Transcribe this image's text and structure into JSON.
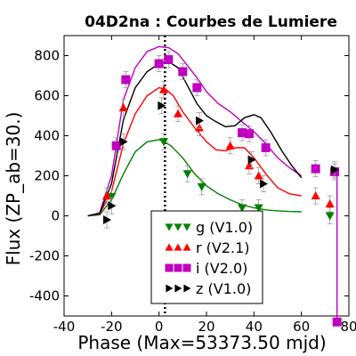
{
  "chart_data": {
    "type": "scatter",
    "title": "04D2na : Courbes de Lumiere",
    "xlabel": "Phase (Max=53373.50 mjd)",
    "ylabel": "Flux (ZP_ab=30.)",
    "xlim": [
      -40,
      80
    ],
    "ylim": [
      -500,
      900
    ],
    "xticks": [
      -40,
      -20,
      0,
      20,
      40,
      60,
      80
    ],
    "yticks": [
      -400,
      -200,
      0,
      200,
      400,
      600,
      800
    ],
    "tick_labels_x": [
      "-40",
      "-20",
      "0",
      "20",
      "40",
      "60",
      "80"
    ],
    "tick_labels_y": [
      "-400",
      "-200",
      "0",
      "200",
      "400",
      "600",
      "800"
    ],
    "max_line_x": 2.5,
    "legend_position": "bottom-center",
    "series": [
      {
        "name": "g (V1.0)",
        "color": "#008000",
        "marker": "triangle-down",
        "points": [
          [
            -20,
            95
          ],
          [
            2,
            370
          ],
          [
            12,
            210
          ],
          [
            18,
            145
          ],
          [
            35,
            40
          ],
          [
            42,
            40
          ],
          [
            72,
            0
          ]
        ],
        "model": [
          [
            -30,
            0
          ],
          [
            -25,
            5
          ],
          [
            -20,
            80
          ],
          [
            -15,
            210
          ],
          [
            -10,
            320
          ],
          [
            -5,
            370
          ],
          [
            0,
            380
          ],
          [
            2,
            372
          ],
          [
            5,
            350
          ],
          [
            10,
            290
          ],
          [
            15,
            210
          ],
          [
            20,
            150
          ],
          [
            25,
            110
          ],
          [
            30,
            80
          ],
          [
            35,
            55
          ],
          [
            40,
            40
          ],
          [
            45,
            30
          ],
          [
            50,
            25
          ],
          [
            55,
            22
          ],
          [
            60,
            20
          ]
        ]
      },
      {
        "name": "r (V2.1)",
        "color": "#ff0000",
        "marker": "triangle-up",
        "points": [
          [
            -22,
            100
          ],
          [
            -15,
            540
          ],
          [
            2,
            630
          ],
          [
            8,
            510
          ],
          [
            17,
            440
          ],
          [
            30,
            350
          ],
          [
            38,
            250
          ],
          [
            42,
            200
          ],
          [
            66,
            100
          ],
          [
            72,
            60
          ]
        ],
        "model": [
          [
            -30,
            0
          ],
          [
            -25,
            10
          ],
          [
            -20,
            120
          ],
          [
            -15,
            360
          ],
          [
            -10,
            510
          ],
          [
            -5,
            600
          ],
          [
            0,
            640
          ],
          [
            3,
            630
          ],
          [
            6,
            600
          ],
          [
            10,
            520
          ],
          [
            15,
            440
          ],
          [
            20,
            370
          ],
          [
            24,
            330
          ],
          [
            28,
            325
          ],
          [
            32,
            340
          ],
          [
            36,
            340
          ],
          [
            40,
            290
          ],
          [
            45,
            210
          ],
          [
            50,
            140
          ],
          [
            55,
            110
          ],
          [
            60,
            100
          ]
        ]
      },
      {
        "name": "i (V2.0)",
        "color": "#bf00bf",
        "marker": "square",
        "points": [
          [
            -18,
            350
          ],
          [
            -14,
            680
          ],
          [
            0,
            760
          ],
          [
            4,
            780
          ],
          [
            10,
            720
          ],
          [
            16,
            640
          ],
          [
            35,
            415
          ],
          [
            38,
            410
          ],
          [
            45,
            340
          ],
          [
            66,
            235
          ],
          [
            74,
            220
          ]
        ],
        "error_bar": [
          75,
          220,
          -530
        ]
      },
      {
        "name": "z (V1.0)",
        "color": "#000000",
        "marker": "triangle-right",
        "points": [
          [
            -22,
            -20
          ],
          [
            -20,
            50
          ],
          [
            -15,
            370
          ],
          [
            1,
            550
          ],
          [
            17,
            475
          ],
          [
            39,
            280
          ],
          [
            44,
            160
          ],
          [
            74,
            230
          ]
        ]
      }
    ],
    "models_other": [
      {
        "series": "i (V2.0)",
        "line": [
          [
            -30,
            0
          ],
          [
            -25,
            15
          ],
          [
            -20,
            200
          ],
          [
            -15,
            580
          ],
          [
            -10,
            740
          ],
          [
            -5,
            820
          ],
          [
            0,
            845
          ],
          [
            4,
            840
          ],
          [
            8,
            810
          ],
          [
            12,
            750
          ],
          [
            16,
            690
          ],
          [
            20,
            620
          ],
          [
            25,
            560
          ],
          [
            30,
            520
          ],
          [
            35,
            470
          ],
          [
            40,
            420
          ],
          [
            45,
            360
          ],
          [
            50,
            290
          ],
          [
            55,
            240
          ],
          [
            60,
            200
          ]
        ]
      },
      {
        "series": "z (V1.0)",
        "line": [
          [
            -30,
            0
          ],
          [
            -25,
            12
          ],
          [
            -20,
            160
          ],
          [
            -15,
            480
          ],
          [
            -10,
            640
          ],
          [
            -5,
            720
          ],
          [
            0,
            760
          ],
          [
            4,
            770
          ],
          [
            8,
            740
          ],
          [
            12,
            650
          ],
          [
            16,
            560
          ],
          [
            20,
            500
          ],
          [
            24,
            470
          ],
          [
            28,
            445
          ],
          [
            32,
            450
          ],
          [
            36,
            490
          ],
          [
            40,
            505
          ],
          [
            43,
            490
          ],
          [
            47,
            420
          ],
          [
            52,
            320
          ],
          [
            56,
            250
          ],
          [
            60,
            190
          ]
        ]
      }
    ]
  }
}
